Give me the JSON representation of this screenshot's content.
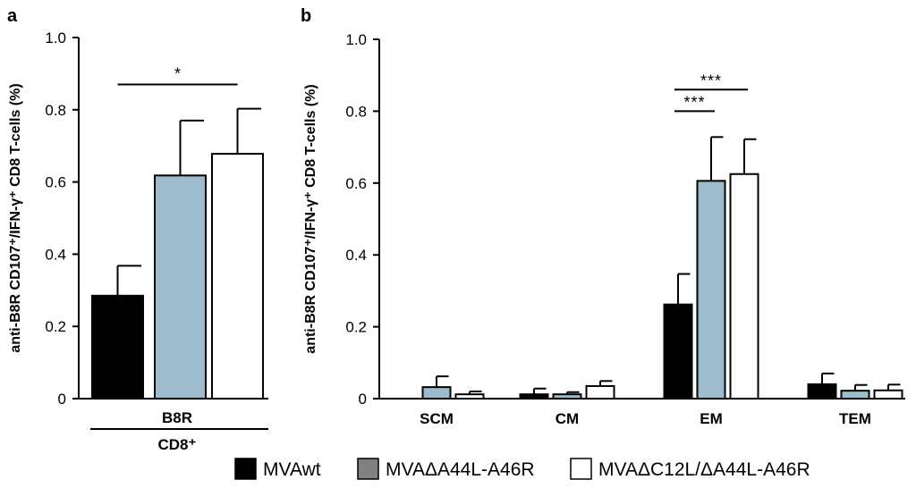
{
  "chart_data": [
    {
      "panel": "a",
      "type": "bar",
      "title": "",
      "ylabel": "anti-B8R CD107⁺/IFN-γ⁺ CD8 T-cells (%)",
      "ylim": [
        0,
        1.0
      ],
      "yticks": [
        "0",
        "0.2",
        "0.4",
        "0.6",
        "0.8",
        "1.0"
      ],
      "yticks_values": [
        0,
        0.2,
        0.4,
        0.6,
        0.8,
        1.0
      ],
      "categories": [
        "B8R"
      ],
      "group_label": "CD8⁺",
      "series": [
        {
          "name": "MVAwt",
          "values": [
            0.285
          ],
          "errors": [
            0.083
          ]
        },
        {
          "name": "MVAΔA44L-A46R",
          "values": [
            0.618
          ],
          "errors": [
            0.152
          ]
        },
        {
          "name": "MVAΔC12L/ΔA44L-A46R",
          "values": [
            0.678
          ],
          "errors": [
            0.125
          ]
        }
      ],
      "significance": [
        {
          "from_series": 0,
          "to_series": 2,
          "label": "*",
          "y": 0.87
        }
      ]
    },
    {
      "panel": "b",
      "type": "bar",
      "title": "",
      "ylabel": "anti-B8R CD107⁺/IFN-γ⁺ CD8 T-cells (%)",
      "ylim": [
        0,
        1.0
      ],
      "yticks": [
        "0",
        "0.2",
        "0.4",
        "0.6",
        "0.8",
        "1.0"
      ],
      "yticks_values": [
        0,
        0.2,
        0.4,
        0.6,
        0.8,
        1.0
      ],
      "categories": [
        "SCM",
        "CM",
        "EM",
        "TEM"
      ],
      "series": [
        {
          "name": "MVAwt",
          "values": [
            0.0,
            0.012,
            0.262,
            0.04
          ],
          "errors": [
            0.0,
            0.016,
            0.085,
            0.03
          ]
        },
        {
          "name": "MVAΔA44L-A46R",
          "values": [
            0.032,
            0.012,
            0.606,
            0.022
          ],
          "errors": [
            0.03,
            0.006,
            0.122,
            0.016
          ]
        },
        {
          "name": "MVAΔC12L/ΔA44L-A46R",
          "values": [
            0.012,
            0.035,
            0.625,
            0.023
          ],
          "errors": [
            0.008,
            0.014,
            0.097,
            0.016
          ]
        }
      ],
      "significance": [
        {
          "category": 2,
          "from_series": 0,
          "to_series": 1,
          "label": "***",
          "y": 0.8
        },
        {
          "category": 2,
          "from_series": 0,
          "to_series": 2,
          "label": "***",
          "y": 0.86
        }
      ]
    }
  ],
  "legend": [
    {
      "label": "MVAwt",
      "color": "#000000"
    },
    {
      "label": "MVAΔA44L-A46R",
      "color": "#808080"
    },
    {
      "label": "MVAΔC12L/ΔA44L-A46R",
      "color": "#ffffff"
    }
  ],
  "bar_colors": [
    "#000000",
    "#9dbccb",
    "#ffffff"
  ]
}
